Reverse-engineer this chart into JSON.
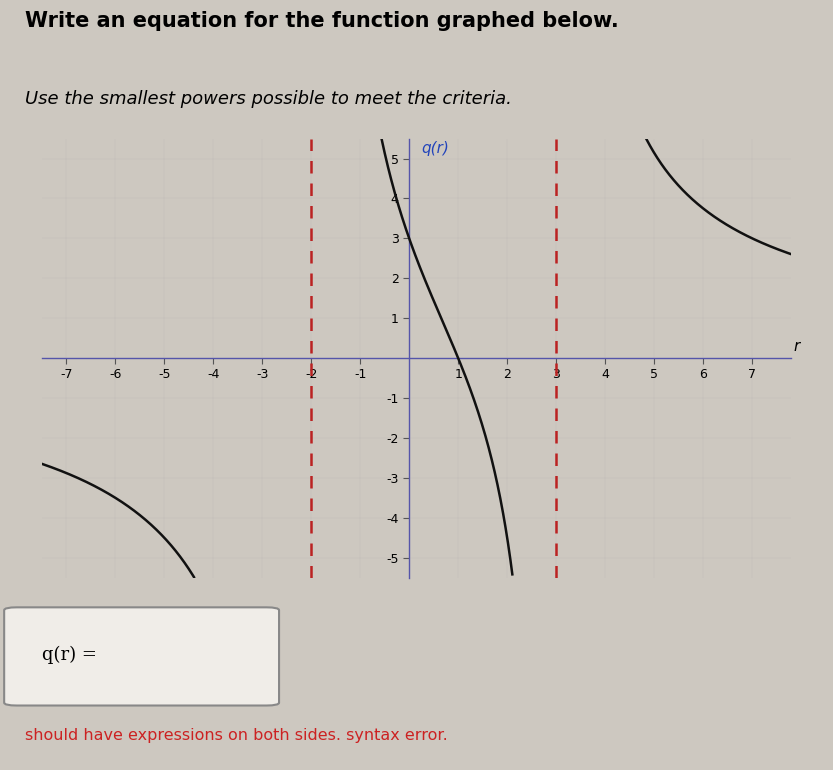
{
  "title_bold": "Write an equation for the function graphed below.",
  "title_italic": "Use the smallest powers possible to meet the criteria.",
  "ylabel": "q(r)",
  "xlabel": "r",
  "xlim": [
    -7.5,
    7.8
  ],
  "ylim": [
    -5.5,
    5.5
  ],
  "xticks": [
    -7,
    -6,
    -5,
    -4,
    -3,
    -2,
    -1,
    1,
    2,
    3,
    4,
    5,
    6,
    7
  ],
  "yticks": [
    -5,
    -4,
    -3,
    -2,
    -1,
    1,
    2,
    3,
    4,
    5
  ],
  "asymptote1": -2,
  "asymptote2": 3,
  "bg_color": "#cdc8c0",
  "curve_color": "#111111",
  "asymptote_color": "#bb2222",
  "ylabel_color": "#2244bb",
  "axis_color": "#5555aa",
  "answer_box_text": "q(r) =",
  "error_text": "should have expressions on both sides. syntax error.",
  "error_color": "#cc2222",
  "answer_box_border": "#999999",
  "func_A": 18,
  "func_zero": 1,
  "title_fontsize": 15,
  "subtitle_fontsize": 13
}
